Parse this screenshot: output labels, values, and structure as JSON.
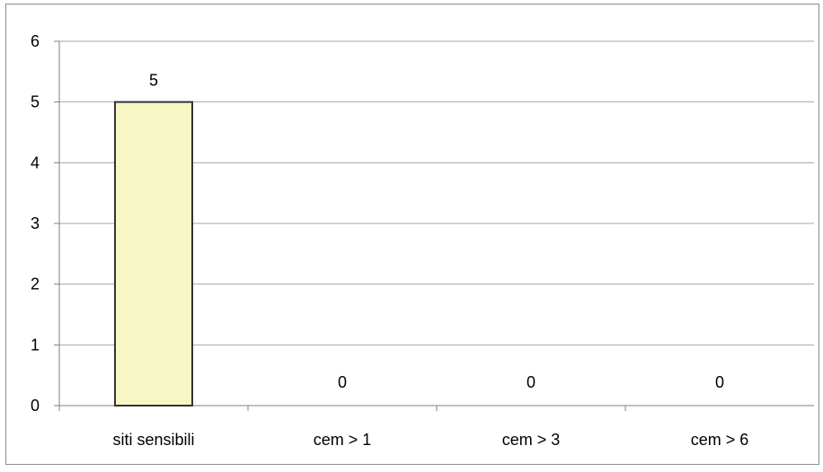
{
  "chart_data": {
    "type": "bar",
    "title": "",
    "xlabel": "",
    "ylabel": "",
    "categories": [
      "siti sensibili",
      "cem > 1",
      "cem > 3",
      "cem > 6"
    ],
    "values": [
      5,
      0,
      0,
      0
    ],
    "data_labels": [
      "5",
      "0",
      "0",
      "0"
    ],
    "ylim": [
      0,
      6
    ],
    "yticks": [
      0,
      1,
      2,
      3,
      4,
      5,
      6
    ],
    "grid": true,
    "legend": "none",
    "bar_color": "#f7f7c6",
    "bar_edge_color": "#333333",
    "gridline_color": "#a6a6a6"
  }
}
